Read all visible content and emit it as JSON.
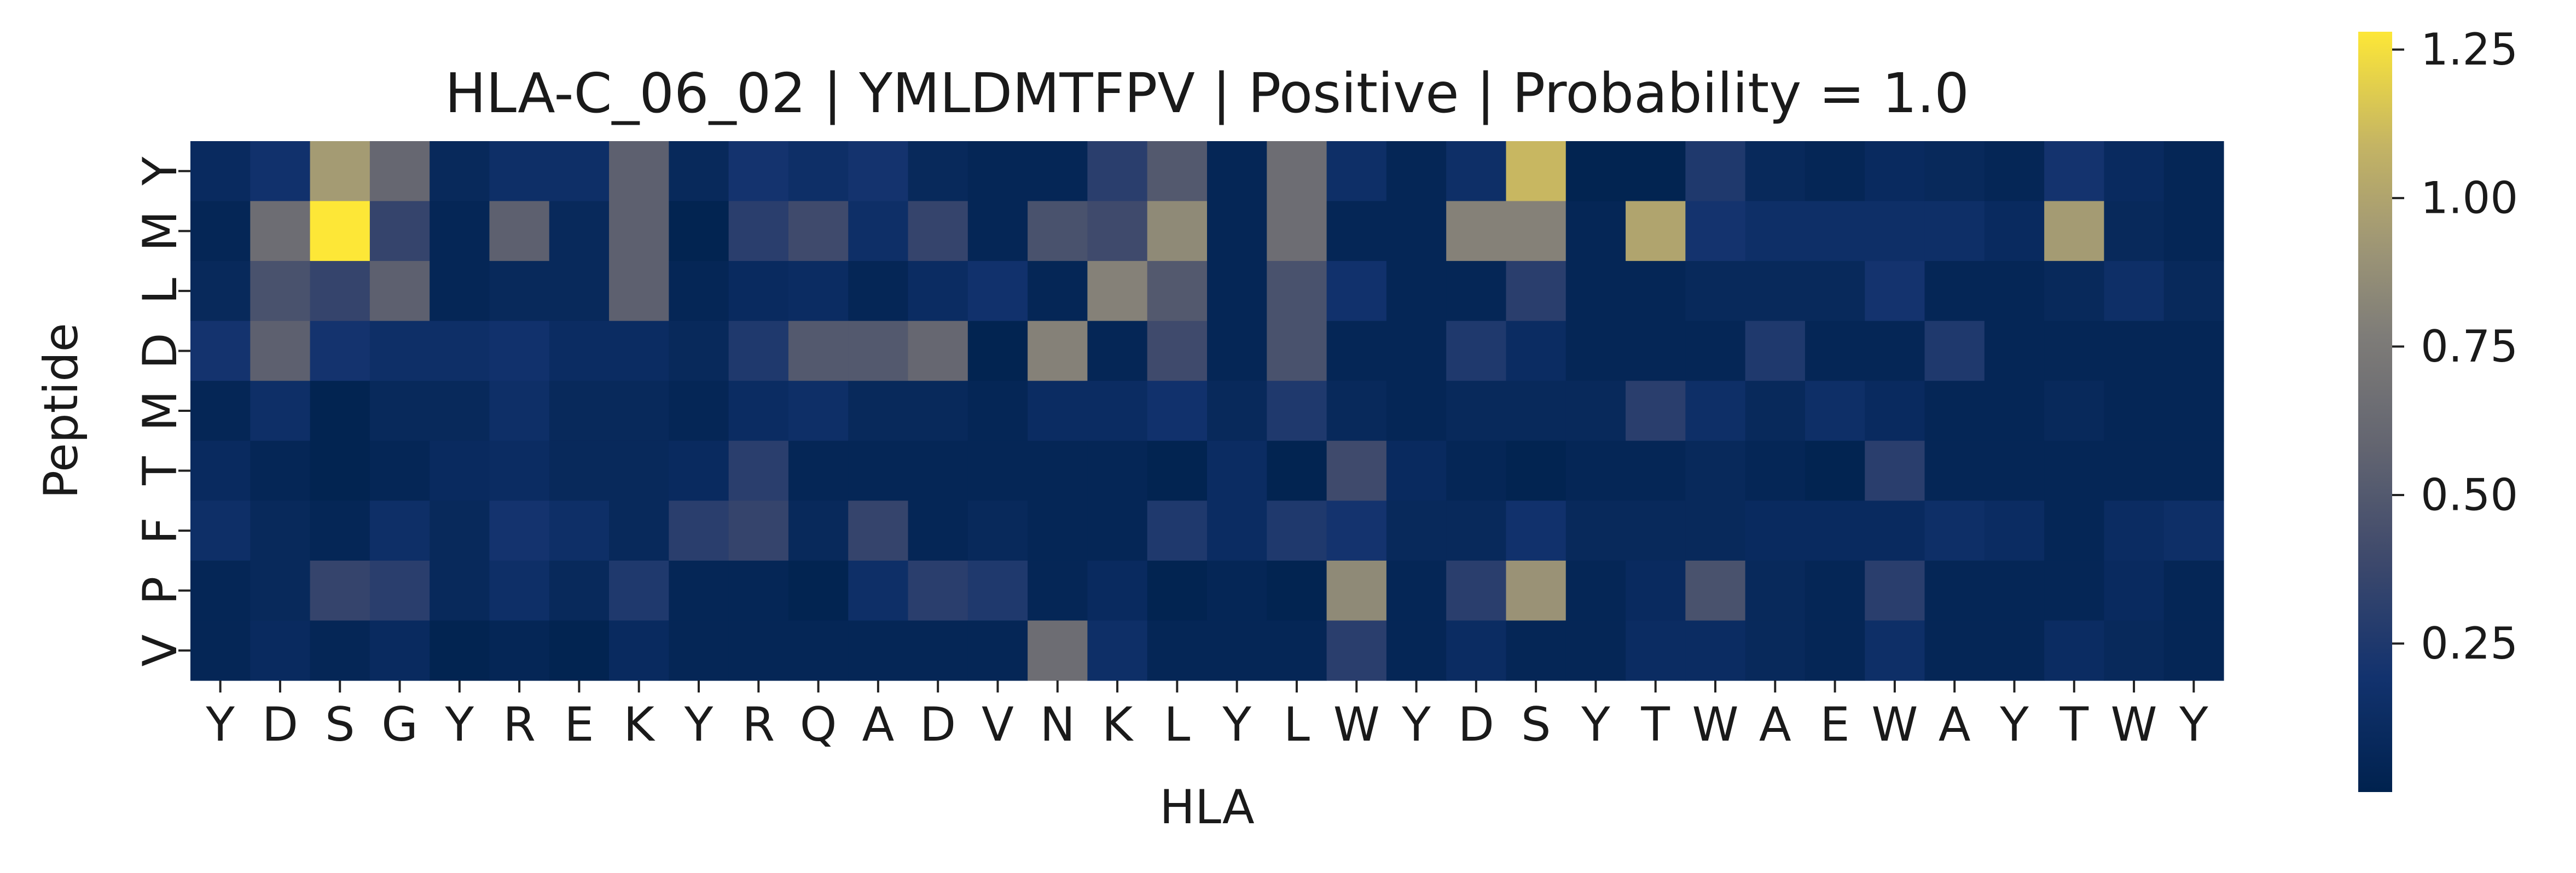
{
  "chart_data": {
    "type": "heatmap",
    "title": "HLA-C_06_02 | YMLDMTFPV | Positive | Probability = 1.0",
    "xlabel": "HLA",
    "ylabel": "Peptide",
    "x_labels": [
      "Y",
      "D",
      "S",
      "G",
      "Y",
      "R",
      "E",
      "K",
      "Y",
      "R",
      "Q",
      "A",
      "D",
      "V",
      "N",
      "K",
      "L",
      "Y",
      "L",
      "W",
      "Y",
      "D",
      "S",
      "Y",
      "T",
      "W",
      "A",
      "E",
      "W",
      "A",
      "Y",
      "T",
      "W",
      "Y"
    ],
    "y_labels": [
      "Y",
      "M",
      "L",
      "D",
      "M",
      "T",
      "F",
      "P",
      "V"
    ],
    "values": [
      [
        0.1,
        0.18,
        0.95,
        0.6,
        0.08,
        0.15,
        0.15,
        0.55,
        0.08,
        0.2,
        0.15,
        0.2,
        0.08,
        0.05,
        0.05,
        0.3,
        0.5,
        0.05,
        0.65,
        0.15,
        0.05,
        0.15,
        1.1,
        0.02,
        0.02,
        0.25,
        0.08,
        0.05,
        0.1,
        0.08,
        0.05,
        0.2,
        0.1,
        0.05
      ],
      [
        0.05,
        0.65,
        1.28,
        0.35,
        0.05,
        0.55,
        0.08,
        0.55,
        0.02,
        0.3,
        0.4,
        0.15,
        0.35,
        0.05,
        0.45,
        0.4,
        0.85,
        0.05,
        0.65,
        0.05,
        0.05,
        0.8,
        0.8,
        0.05,
        1.0,
        0.2,
        0.15,
        0.15,
        0.15,
        0.15,
        0.1,
        0.95,
        0.08,
        0.05
      ],
      [
        0.08,
        0.45,
        0.35,
        0.55,
        0.05,
        0.08,
        0.08,
        0.55,
        0.05,
        0.1,
        0.12,
        0.05,
        0.12,
        0.18,
        0.05,
        0.8,
        0.5,
        0.05,
        0.45,
        0.18,
        0.05,
        0.05,
        0.3,
        0.05,
        0.05,
        0.08,
        0.08,
        0.08,
        0.2,
        0.05,
        0.05,
        0.08,
        0.15,
        0.08
      ],
      [
        0.2,
        0.55,
        0.2,
        0.15,
        0.15,
        0.18,
        0.12,
        0.12,
        0.08,
        0.25,
        0.5,
        0.5,
        0.6,
        0.02,
        0.8,
        0.05,
        0.4,
        0.05,
        0.45,
        0.05,
        0.05,
        0.25,
        0.12,
        0.05,
        0.05,
        0.05,
        0.25,
        0.05,
        0.05,
        0.25,
        0.05,
        0.05,
        0.05,
        0.05
      ],
      [
        0.05,
        0.15,
        0.02,
        0.08,
        0.08,
        0.15,
        0.08,
        0.08,
        0.05,
        0.12,
        0.15,
        0.08,
        0.08,
        0.05,
        0.12,
        0.12,
        0.18,
        0.08,
        0.25,
        0.08,
        0.05,
        0.08,
        0.08,
        0.08,
        0.3,
        0.15,
        0.08,
        0.15,
        0.1,
        0.05,
        0.05,
        0.08,
        0.05,
        0.05
      ],
      [
        0.1,
        0.05,
        0.02,
        0.05,
        0.1,
        0.12,
        0.08,
        0.08,
        0.1,
        0.3,
        0.05,
        0.05,
        0.05,
        0.05,
        0.05,
        0.05,
        0.02,
        0.12,
        0.02,
        0.4,
        0.1,
        0.05,
        0.02,
        0.05,
        0.05,
        0.08,
        0.05,
        0.02,
        0.3,
        0.05,
        0.05,
        0.05,
        0.05,
        0.05
      ],
      [
        0.15,
        0.08,
        0.05,
        0.15,
        0.08,
        0.2,
        0.15,
        0.08,
        0.3,
        0.35,
        0.08,
        0.35,
        0.05,
        0.08,
        0.05,
        0.05,
        0.25,
        0.12,
        0.25,
        0.2,
        0.08,
        0.08,
        0.18,
        0.08,
        0.08,
        0.08,
        0.1,
        0.1,
        0.1,
        0.15,
        0.12,
        0.05,
        0.12,
        0.15
      ],
      [
        0.05,
        0.08,
        0.35,
        0.3,
        0.08,
        0.15,
        0.08,
        0.25,
        0.05,
        0.05,
        0.02,
        0.15,
        0.3,
        0.25,
        0.05,
        0.1,
        0.02,
        0.05,
        0.02,
        0.85,
        0.05,
        0.3,
        0.9,
        0.05,
        0.1,
        0.45,
        0.08,
        0.05,
        0.3,
        0.05,
        0.05,
        0.05,
        0.1,
        0.05
      ],
      [
        0.05,
        0.1,
        0.05,
        0.1,
        0.02,
        0.05,
        0.02,
        0.1,
        0.05,
        0.05,
        0.05,
        0.05,
        0.05,
        0.05,
        0.65,
        0.15,
        0.05,
        0.05,
        0.05,
        0.3,
        0.05,
        0.12,
        0.05,
        0.05,
        0.12,
        0.12,
        0.08,
        0.05,
        0.15,
        0.05,
        0.05,
        0.12,
        0.08,
        0.05
      ]
    ],
    "colormap": "cividis",
    "colorbar": {
      "min": 0.0,
      "max": 1.28,
      "ticks": [
        "0.25",
        "0.50",
        "0.75",
        "1.00",
        "1.25"
      ],
      "tick_values": [
        0.25,
        0.5,
        0.75,
        1.0,
        1.25
      ]
    },
    "grid": false
  }
}
